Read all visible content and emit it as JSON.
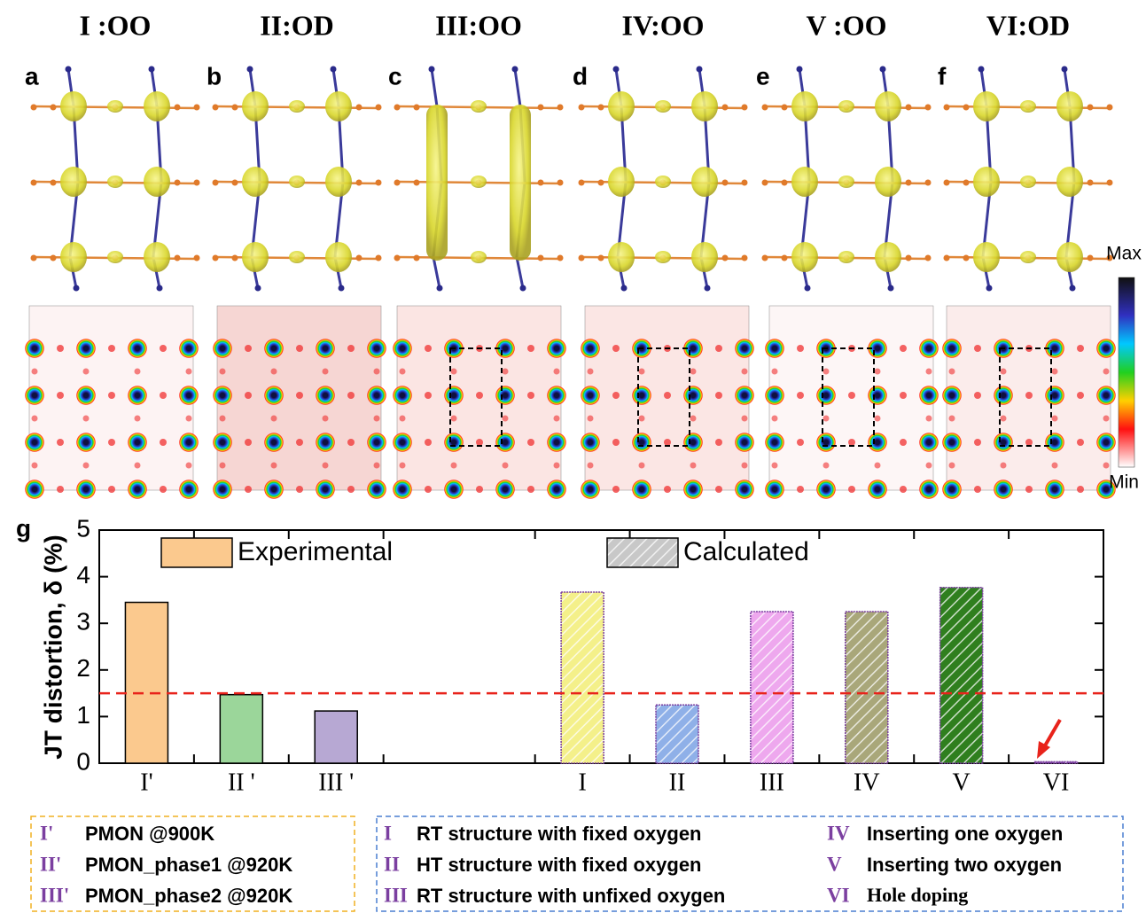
{
  "panels": {
    "headers": [
      "I :OO",
      "II:OD",
      "III:OO",
      "IV:OO",
      "V :OO",
      "VI:OD"
    ],
    "labels": [
      "a",
      "b",
      "c",
      "d",
      "e",
      "f"
    ],
    "colorbar": {
      "max": "Max",
      "min": "Min"
    }
  },
  "chart_data": {
    "type": "bar",
    "panel_label": "g",
    "ylabel": "JT distortion, δ (%)",
    "categories": [
      "I'",
      "II '",
      "III '",
      null,
      "I",
      "II",
      "III",
      "IV",
      "V",
      "VI"
    ],
    "series": [
      {
        "name": "Experimental",
        "color": "#fbc98e",
        "hatch": false,
        "bar_colors": [
          "#fbc98e",
          "#9bd69a",
          "#b7a8d3",
          null,
          null,
          null,
          null,
          null,
          null,
          null
        ],
        "values": [
          3.45,
          1.47,
          1.12,
          null,
          null,
          null,
          null,
          null,
          null,
          null
        ]
      },
      {
        "name": "Calculated",
        "color": "#c8c8c8",
        "hatch": true,
        "bar_colors": [
          null,
          null,
          null,
          null,
          "#f4f08a",
          "#8fb0e8",
          "#eea8ee",
          "#a9a77a",
          "#2f7f1e",
          "#7b3fa0"
        ],
        "values": [
          null,
          null,
          null,
          null,
          3.67,
          1.25,
          3.25,
          3.25,
          3.77,
          0.03
        ]
      }
    ],
    "ylim": [
      0,
      5
    ],
    "yticks": [
      0,
      1,
      2,
      3,
      4,
      5
    ],
    "hlines": [
      {
        "value": 1.5,
        "color": "#e8231b"
      }
    ]
  },
  "notes": {
    "left": [
      {
        "key": "I'",
        "text": "PMON @900K"
      },
      {
        "key": "II'",
        "text": "PMON_phase1 @920K"
      },
      {
        "key": "III'",
        "text": "PMON_phase2 @920K"
      }
    ],
    "right": [
      {
        "key": "I",
        "text": "RT structure with fixed oxygen"
      },
      {
        "key": "IV",
        "text": "Inserting one oxygen"
      },
      {
        "key": "II",
        "text": "HT structure with fixed oxygen"
      },
      {
        "key": "V",
        "text": "Inserting two oxygen"
      },
      {
        "key": "III",
        "text": "RT structure with unfixed oxygen"
      },
      {
        "key": "VI",
        "text": "Hole doping"
      }
    ]
  }
}
